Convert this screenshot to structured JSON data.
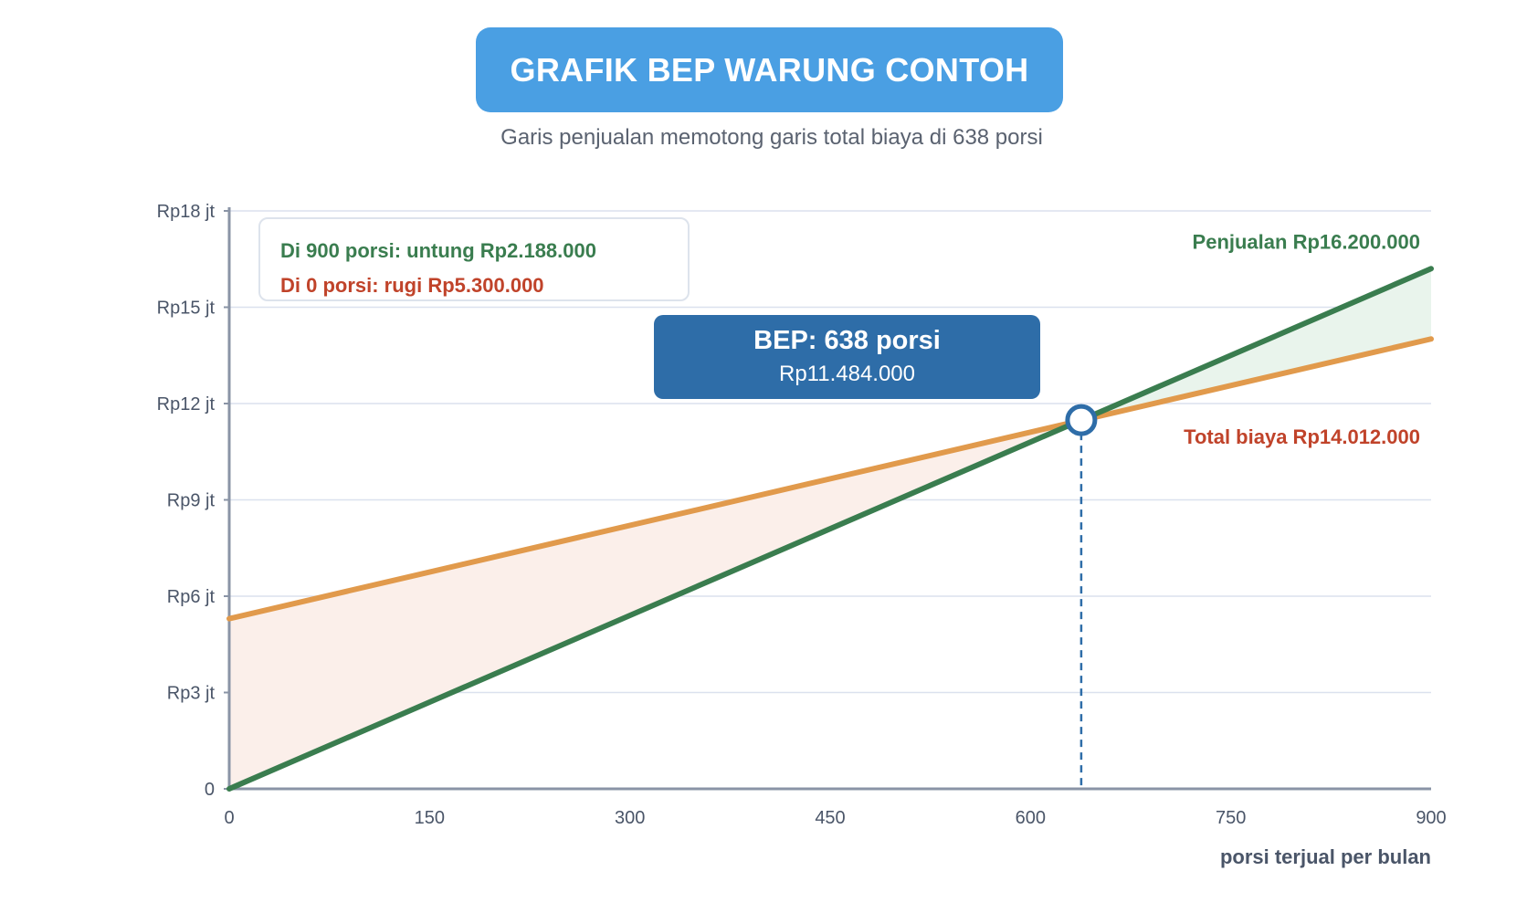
{
  "header": {
    "title": "GRAFIK BEP WARUNG CONTOH",
    "subtitle": "Garis penjualan memotong garis total biaya di 638 porsi"
  },
  "legend": {
    "profit_text": "Di 900 porsi: untung Rp2.188.000",
    "loss_text": "Di 0 porsi: rugi Rp5.300.000"
  },
  "bep": {
    "title": "BEP: 638 porsi",
    "value": "Rp11.484.000"
  },
  "colors": {
    "sales": "#3a7d4f",
    "cost": "#e19a4c",
    "profit_fill": "#e9f4ec",
    "loss_fill": "#fbefea",
    "profit_text": "#3a7d4f",
    "loss_text": "#c0432a",
    "bep_marker": "#2e6da8",
    "grid": "#dbe1ee",
    "axis": "#8a94a6"
  },
  "chart_data": {
    "type": "line",
    "xlabel": "porsi terjual per bulan",
    "ylabel": "",
    "xlim": [
      0,
      900
    ],
    "ylim": [
      0,
      18000000
    ],
    "x_ticks": [
      0,
      150,
      300,
      450,
      600,
      750,
      900
    ],
    "x_tick_labels": [
      "0",
      "150",
      "300",
      "450",
      "600",
      "750",
      "900"
    ],
    "y_ticks": [
      0,
      3000000,
      6000000,
      9000000,
      12000000,
      15000000,
      18000000
    ],
    "y_tick_labels": [
      "0",
      "Rp3 jt",
      "Rp6 jt",
      "Rp9 jt",
      "Rp12 jt",
      "Rp15 jt",
      "Rp18 jt"
    ],
    "grid": true,
    "series": [
      {
        "name": "Penjualan",
        "label": "Penjualan Rp16.200.000",
        "x": [
          0,
          900
        ],
        "y": [
          0,
          16200000
        ]
      },
      {
        "name": "Total biaya",
        "label": "Total biaya Rp14.012.000",
        "x": [
          0,
          900
        ],
        "y": [
          5300000,
          14012000
        ]
      }
    ],
    "break_even": {
      "x": 638,
      "y": 11484000
    }
  }
}
